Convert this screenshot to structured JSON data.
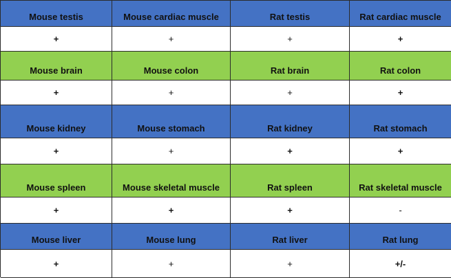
{
  "colors": {
    "blue_row": "#4472c4",
    "green_row": "#92d050",
    "value_row": "#ffffff"
  },
  "rows": [
    {
      "band": "blue",
      "tissues": [
        "Mouse testis",
        "Mouse cardiac muscle",
        "Rat testis",
        "Rat cardiac muscle"
      ],
      "values": [
        "+",
        "+",
        "+",
        "+"
      ]
    },
    {
      "band": "green",
      "tissues": [
        "Mouse brain",
        "Mouse colon",
        "Rat brain",
        "Rat colon"
      ],
      "values": [
        "+",
        "+",
        "+",
        "+"
      ]
    },
    {
      "band": "blue",
      "tissues": [
        "Mouse kidney",
        "Mouse stomach",
        "Rat kidney",
        "Rat stomach"
      ],
      "values": [
        "+",
        "+",
        "+",
        "+"
      ]
    },
    {
      "band": "green",
      "tissues": [
        "Mouse spleen",
        "Mouse skeletal muscle",
        "Rat spleen",
        "Rat skeletal muscle"
      ],
      "values": [
        "+",
        "+",
        "+",
        "-"
      ]
    },
    {
      "band": "blue",
      "tissues": [
        "Mouse liver",
        "Mouse lung",
        "Rat liver",
        "Rat lung"
      ],
      "values": [
        "+",
        "+",
        "+",
        "+/-"
      ]
    }
  ]
}
